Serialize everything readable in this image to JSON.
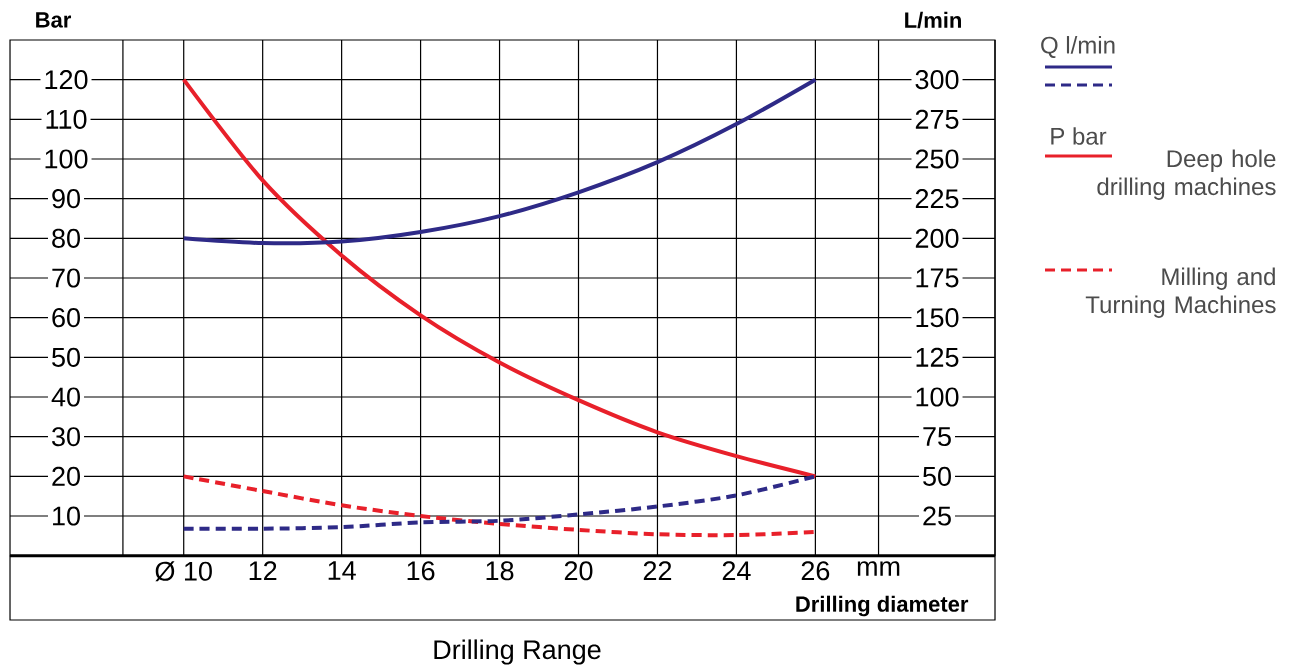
{
  "chart_data": {
    "type": "line",
    "title": "Drilling Range",
    "xlabel": "Drilling diameter",
    "ylabel": "Bar",
    "y2label": "L/min",
    "x": [
      10,
      12,
      14,
      16,
      18,
      20,
      22,
      24,
      26
    ],
    "xlim": [
      5.6,
      30.55
    ],
    "xticks": [
      {
        "value": 8.46,
        "label": null
      },
      {
        "value": 10,
        "label": "Ø 10"
      },
      12,
      14,
      16,
      18,
      20,
      22,
      24,
      26,
      {
        "value": 27.6,
        "label": "mm"
      }
    ],
    "ylim": [
      0,
      130
    ],
    "yticks": [
      10,
      20,
      30,
      40,
      50,
      60,
      70,
      80,
      90,
      100,
      110,
      120
    ],
    "y2lim": [
      0,
      325
    ],
    "y2ticks": [
      25,
      50,
      75,
      100,
      125,
      150,
      175,
      200,
      225,
      250,
      275,
      300
    ],
    "grid": true,
    "legend": "right",
    "annotations": [
      "Deep hole drilling machines"
    ],
    "series": [
      {
        "name": "Q l/min",
        "color": "#2e2a87",
        "axis": "y2",
        "line_style": "solid",
        "values": [
          200,
          197,
          198,
          204,
          214,
          229,
          248,
          272,
          300
        ]
      },
      {
        "color": "#2e2a87",
        "axis": "y2",
        "line_style": "dashed",
        "values": [
          17,
          17,
          18,
          21,
          22,
          26,
          31,
          38,
          50
        ]
      },
      {
        "name": "P bar",
        "color": "#e8202a",
        "line_style": "solid",
        "values": [
          120,
          94.6,
          75.7,
          60.6,
          48.7,
          39.2,
          31.1,
          25.1,
          20
        ]
      },
      {
        "name": "Milling and Turning Machines",
        "color": "#e8202a",
        "line_style": "dashed",
        "values": [
          20,
          16.3,
          12.7,
          10,
          8,
          6.5,
          5.4,
          5.2,
          6
        ]
      }
    ]
  }
}
